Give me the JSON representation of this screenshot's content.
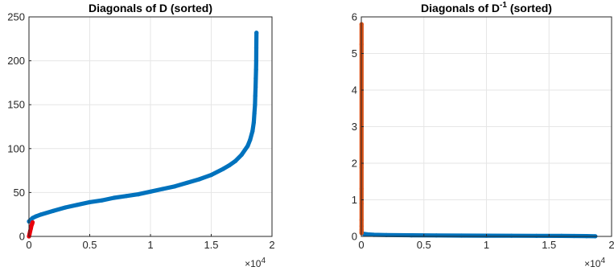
{
  "chart_data": [
    {
      "type": "scatter",
      "title": {
        "main": "Diagonals of D (sorted)"
      },
      "xlabel": "",
      "ylabel": "",
      "xlim": [
        0,
        20000
      ],
      "ylim": [
        0,
        250
      ],
      "xticks": [
        0,
        5000,
        10000,
        15000,
        20000
      ],
      "xtick_labels": [
        "0",
        "0.5",
        "1",
        "1.5",
        "2"
      ],
      "yticks": [
        0,
        50,
        100,
        150,
        200,
        250
      ],
      "ytick_labels": [
        "0",
        "50",
        "100",
        "150",
        "200",
        "250"
      ],
      "x_exponent": {
        "base": "×10",
        "power": "4"
      },
      "grid": true,
      "series": [
        {
          "color": "#0072BD",
          "x": [
            0,
            300,
            600,
            1000,
            2000,
            3000,
            4000,
            5000,
            6000,
            7000,
            8000,
            9000,
            10000,
            11000,
            12000,
            13000,
            14000,
            15000,
            16000,
            16500,
            17000,
            17500,
            18000,
            18200,
            18400,
            18500,
            18550,
            18600,
            18620,
            18650,
            18670,
            18690,
            18700,
            18710,
            18720
          ],
          "y": [
            17,
            21,
            23,
            25,
            29,
            33,
            36,
            39,
            41,
            44,
            46,
            48,
            51,
            54,
            57,
            61,
            65,
            70,
            77,
            81,
            86,
            93,
            103,
            110,
            120,
            130,
            140,
            150,
            160,
            170,
            180,
            190,
            200,
            215,
            232
          ]
        },
        {
          "color": "#E8000B",
          "x": [
            0,
            50,
            100,
            150,
            200,
            250,
            300
          ],
          "y": [
            0,
            3,
            6,
            9,
            12,
            14,
            16
          ]
        }
      ]
    },
    {
      "type": "scatter",
      "title": {
        "main": "Diagonals of D",
        "sup": "-1",
        "suffix": " (sorted)"
      },
      "xlabel": "",
      "ylabel": "",
      "xlim": [
        0,
        20000
      ],
      "ylim": [
        0,
        6
      ],
      "xticks": [
        0,
        5000,
        10000,
        15000,
        20000
      ],
      "xtick_labels": [
        "0",
        "0.5",
        "1",
        "1.5",
        "2"
      ],
      "yticks": [
        0,
        1,
        2,
        3,
        4,
        5,
        6
      ],
      "ytick_labels": [
        "0",
        "1",
        "2",
        "3",
        "4",
        "5",
        "6"
      ],
      "x_exponent": {
        "base": "×10",
        "power": "4"
      },
      "grid": true,
      "series": [
        {
          "color": "#0072BD",
          "x": [
            200,
            500,
            1000,
            2000,
            4000,
            6000,
            8000,
            10000,
            12000,
            14000,
            16000,
            17000,
            18000,
            18700
          ],
          "y": [
            0.07,
            0.055,
            0.045,
            0.038,
            0.03,
            0.026,
            0.022,
            0.02,
            0.018,
            0.016,
            0.014,
            0.012,
            0.009,
            0.005
          ]
        },
        {
          "color": "#D95319",
          "x": [
            20,
            20,
            20,
            20,
            20,
            20,
            20,
            20,
            20,
            20,
            20
          ],
          "y": [
            5.8,
            5.25,
            1.97,
            1.88,
            1.3,
            0.9,
            0.45,
            0.28,
            0.18,
            0.12,
            0.09
          ]
        }
      ]
    }
  ]
}
